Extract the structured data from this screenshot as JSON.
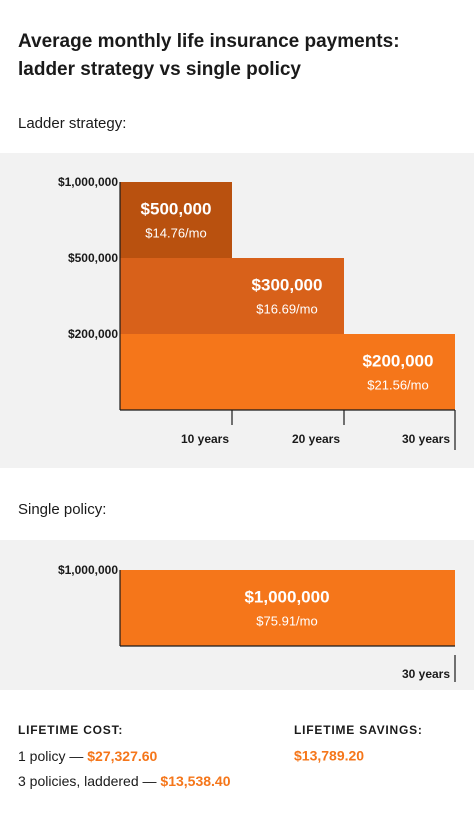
{
  "title": [
    "Average monthly life insurance payments:",
    "ladder strategy vs single policy"
  ],
  "ladder": {
    "heading": "Ladder strategy:",
    "y_labels": [
      "$1,000,000",
      "$500,000",
      "$200,000"
    ],
    "x_labels": [
      "10 years",
      "20 years",
      "30 years"
    ],
    "blocks": [
      {
        "amount": "$500,000",
        "rate": "$14.76/mo"
      },
      {
        "amount": "$300,000",
        "rate": "$16.69/mo"
      },
      {
        "amount": "$200,000",
        "rate": "$21.56/mo"
      }
    ]
  },
  "single": {
    "heading": "Single policy:",
    "y_labels": [
      "$1,000,000"
    ],
    "x_labels": [
      "30 years"
    ],
    "blocks": [
      {
        "amount": "$1,000,000",
        "rate": "$75.91/mo"
      }
    ]
  },
  "summary": {
    "cost_heading": "LIFETIME COST:",
    "lines": [
      {
        "label": "1 policy —",
        "amount": "$27,327.60"
      },
      {
        "label": "3 policies, laddered —",
        "amount": "$13,538.40"
      }
    ],
    "savings_heading": "LIFETIME SAVINGS:",
    "savings": "$13,789.20"
  }
}
